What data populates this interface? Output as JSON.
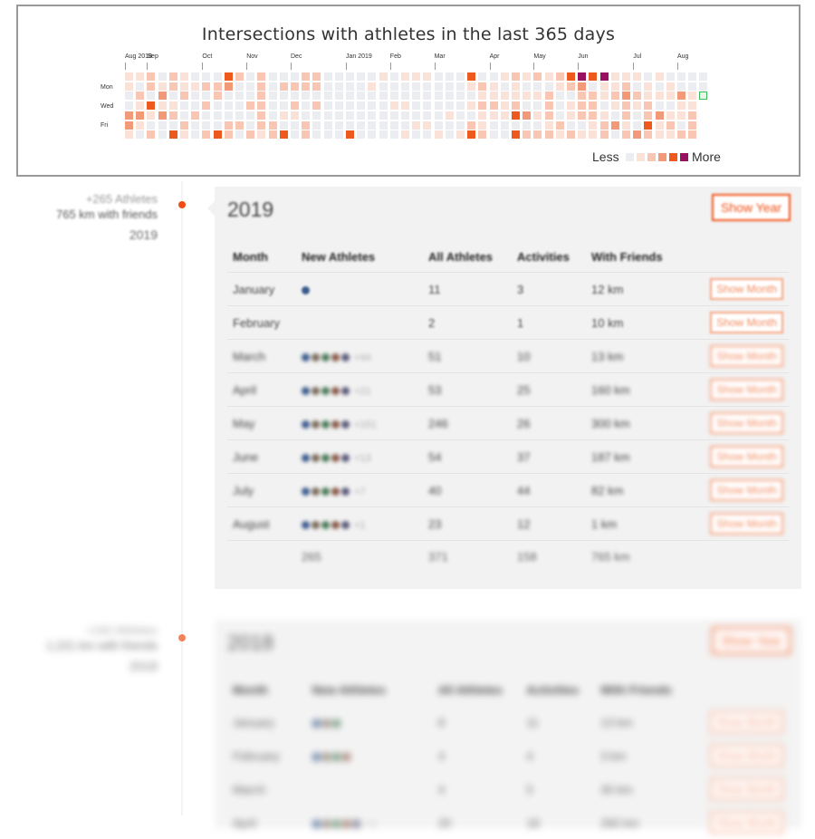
{
  "heatmap": {
    "title": "Intersections with athletes in the last 365 days",
    "months": [
      {
        "label": "Aug 2018",
        "col": 0
      },
      {
        "label": "Sep",
        "col": 2
      },
      {
        "label": "Oct",
        "col": 7
      },
      {
        "label": "Nov",
        "col": 11
      },
      {
        "label": "Dec",
        "col": 15
      },
      {
        "label": "Jan 2019",
        "col": 20
      },
      {
        "label": "Feb",
        "col": 24
      },
      {
        "label": "Mar",
        "col": 28
      },
      {
        "label": "Apr",
        "col": 33
      },
      {
        "label": "May",
        "col": 37
      },
      {
        "label": "Jun",
        "col": 41
      },
      {
        "label": "Jul",
        "col": 46
      },
      {
        "label": "Aug",
        "col": 50
      }
    ],
    "days": [
      "Mon",
      "Wed",
      "Fri"
    ],
    "legend_less": "Less",
    "legend_more": "More",
    "colors": [
      "#ebedf0",
      "#fbe2d8",
      "#f8c6b2",
      "#f29a77",
      "#ee5a1e",
      "#9a1060"
    ],
    "highlight_color": "#3cba54"
  },
  "timeline": [
    {
      "athletes": "+265 Athletes",
      "km": "765 km with friends",
      "year": "2019",
      "card": {
        "title": "2019",
        "show_year": "Show Year",
        "headers": [
          "Month",
          "New Athletes",
          "All Athletes",
          "Activities",
          "With Friends"
        ],
        "rows": [
          {
            "month": "January",
            "avatars": 1,
            "plus": "",
            "all": "11",
            "activities": "3",
            "friends": "12 km",
            "button": "Show Month"
          },
          {
            "month": "February",
            "avatars": 0,
            "plus": "",
            "all": "2",
            "activities": "1",
            "friends": "10 km",
            "button": "Show Month"
          },
          {
            "month": "March",
            "avatars": 5,
            "plus": "+44",
            "all": "51",
            "activities": "10",
            "friends": "13 km",
            "button": "Show Month"
          },
          {
            "month": "April",
            "avatars": 5,
            "plus": "+21",
            "all": "53",
            "activities": "25",
            "friends": "160 km",
            "button": "Show Month"
          },
          {
            "month": "May",
            "avatars": 5,
            "plus": "+151",
            "all": "246",
            "activities": "26",
            "friends": "300 km",
            "button": "Show Month"
          },
          {
            "month": "June",
            "avatars": 5,
            "plus": "+13",
            "all": "54",
            "activities": "37",
            "friends": "187 km",
            "button": "Show Month"
          },
          {
            "month": "July",
            "avatars": 5,
            "plus": "+7",
            "all": "40",
            "activities": "44",
            "friends": "82 km",
            "button": "Show Month"
          },
          {
            "month": "August",
            "avatars": 5,
            "plus": "+1",
            "all": "23",
            "activities": "12",
            "friends": "1 km",
            "button": "Show Month"
          }
        ],
        "total": {
          "new": "265",
          "all": "371",
          "activities": "158",
          "friends": "765 km"
        }
      }
    },
    {
      "athletes": "+192 Athletes",
      "km": "1,221 km with friends",
      "year": "2018",
      "card": {
        "title": "2018",
        "show_year": "Show Year",
        "headers": [
          "Month",
          "New Athletes",
          "All Athletes",
          "Activities",
          "With Friends"
        ],
        "rows": [
          {
            "month": "January",
            "avatars": 3,
            "plus": "",
            "all": "8",
            "activities": "11",
            "friends": "13 km",
            "button": "Show Month"
          },
          {
            "month": "February",
            "avatars": 4,
            "plus": "",
            "all": "4",
            "activities": "4",
            "friends": "3 km",
            "button": "Show Month"
          },
          {
            "month": "March",
            "avatars": 0,
            "plus": "",
            "all": "4",
            "activities": "5",
            "friends": "30 km",
            "button": "Show Month"
          },
          {
            "month": "April",
            "avatars": 5,
            "plus": "+4",
            "all": "20",
            "activities": "18",
            "friends": "260 km",
            "button": "Show Month"
          }
        ],
        "total": {
          "new": "",
          "all": "",
          "activities": "",
          "friends": ""
        }
      }
    }
  ]
}
